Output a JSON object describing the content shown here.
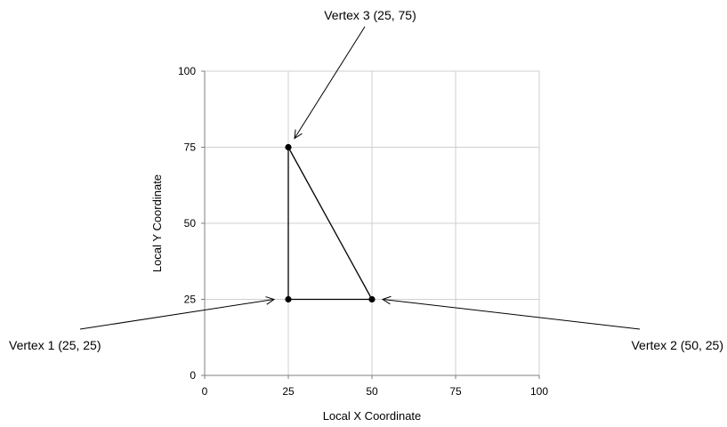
{
  "chart_data": {
    "type": "scatter",
    "title": "",
    "xlabel": "Local X Coordinate",
    "ylabel": "Local Y Coordinate",
    "xlim": [
      0,
      100
    ],
    "ylim": [
      0,
      100
    ],
    "xticks": [
      0,
      25,
      50,
      75,
      100
    ],
    "yticks": [
      0,
      25,
      50,
      75,
      100
    ],
    "grid": true,
    "series": [
      {
        "points": [
          {
            "x": 25,
            "y": 25
          },
          {
            "x": 50,
            "y": 25
          },
          {
            "x": 25,
            "y": 75
          }
        ],
        "closed": true
      }
    ],
    "annotations": [
      {
        "text": "Vertex 1 (25, 25)",
        "x": 25,
        "y": 25
      },
      {
        "text": "Vertex 2 (50, 25)",
        "x": 50,
        "y": 25
      },
      {
        "text": "Vertex 3 (25, 75)",
        "x": 25,
        "y": 75
      }
    ],
    "colors": {
      "grid": "#cfcfcf",
      "axis": "#7f7f7f",
      "marks": "#000000"
    }
  }
}
